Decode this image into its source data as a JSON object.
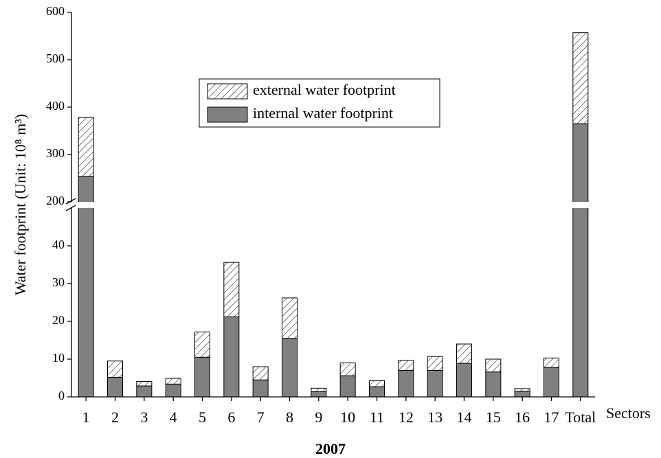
{
  "chart_data": {
    "type": "bar",
    "stacked": true,
    "ylabel": "Water footprint (Unit: 10⁸ m³)",
    "xlabel": "Sectors",
    "subtitle": "2007",
    "categories": [
      "1",
      "2",
      "3",
      "4",
      "5",
      "6",
      "7",
      "8",
      "9",
      "10",
      "11",
      "12",
      "13",
      "14",
      "15",
      "16",
      "17",
      "Total"
    ],
    "series": [
      {
        "name": "internal water footprint",
        "color": "#808080",
        "pattern": "solid",
        "values": [
          254,
          5.2,
          2.9,
          3.4,
          10.5,
          21.2,
          4.5,
          15.5,
          1.4,
          5.6,
          2.7,
          7.0,
          7.0,
          8.9,
          6.6,
          1.5,
          7.8,
          365
        ]
      },
      {
        "name": "external water footprint",
        "color": "#ffffff",
        "pattern": "hatch",
        "values": [
          124,
          4.3,
          1.2,
          1.5,
          6.7,
          14.4,
          3.5,
          10.7,
          0.9,
          3.4,
          1.6,
          2.7,
          3.7,
          5.1,
          3.4,
          0.7,
          2.5,
          192
        ]
      }
    ],
    "ylim": [
      0,
      600
    ],
    "ybreak": [
      50,
      200
    ],
    "yticks": [
      0,
      10,
      20,
      30,
      40,
      200,
      300,
      400,
      500,
      600
    ],
    "legend": "top-center"
  }
}
